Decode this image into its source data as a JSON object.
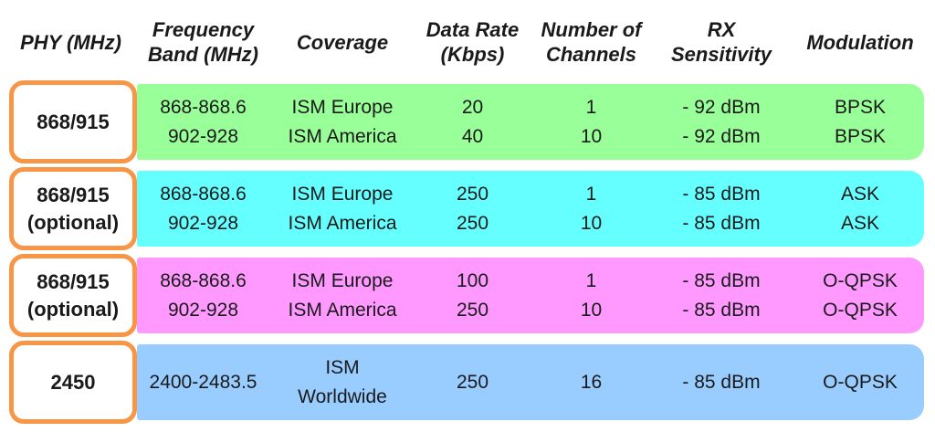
{
  "colors": {
    "accent_box_border": "#F79646",
    "band_green": "#99FF99",
    "band_cyan": "#66FFFF",
    "band_magenta": "#FF99FF",
    "band_blue": "#99CCFF"
  },
  "header": {
    "columns": [
      {
        "line1": "PHY (MHz)",
        "line2": ""
      },
      {
        "line1": "Frequency",
        "line2": "Band (MHz)"
      },
      {
        "line1": "Coverage",
        "line2": ""
      },
      {
        "line1": "Data Rate",
        "line2": "(Kbps)"
      },
      {
        "line1": "Number of",
        "line2": "Channels"
      },
      {
        "line1": "RX",
        "line2": "Sensitivity"
      },
      {
        "line1": "Modulation",
        "line2": ""
      }
    ]
  },
  "rows": [
    {
      "phy": {
        "a": "868/915",
        "b": ""
      },
      "color": "#99FF99",
      "cells": {
        "freq": {
          "a": "868-868.6",
          "b": "902-928"
        },
        "coverage": {
          "a": "ISM Europe",
          "b": "ISM America"
        },
        "rate": {
          "a": "20",
          "b": "40"
        },
        "channels": {
          "a": "1",
          "b": "10"
        },
        "rx": {
          "a": "- 92 dBm",
          "b": "- 92 dBm"
        },
        "mod": {
          "a": "BPSK",
          "b": "BPSK"
        }
      }
    },
    {
      "phy": {
        "a": "868/915",
        "b": "(optional)"
      },
      "color": "#66FFFF",
      "cells": {
        "freq": {
          "a": "868-868.6",
          "b": "902-928"
        },
        "coverage": {
          "a": "ISM Europe",
          "b": "ISM America"
        },
        "rate": {
          "a": "250",
          "b": "250"
        },
        "channels": {
          "a": "1",
          "b": "10"
        },
        "rx": {
          "a": "- 85 dBm",
          "b": "- 85 dBm"
        },
        "mod": {
          "a": "ASK",
          "b": "ASK"
        }
      }
    },
    {
      "phy": {
        "a": "868/915",
        "b": "(optional)"
      },
      "color": "#FF99FF",
      "cells": {
        "freq": {
          "a": "868-868.6",
          "b": "902-928"
        },
        "coverage": {
          "a": "ISM Europe",
          "b": "ISM America"
        },
        "rate": {
          "a": "100",
          "b": "250"
        },
        "channels": {
          "a": "1",
          "b": "10"
        },
        "rx": {
          "a": "- 85 dBm",
          "b": "- 85 dBm"
        },
        "mod": {
          "a": "O-QPSK",
          "b": "O-QPSK"
        }
      }
    },
    {
      "phy": {
        "a": "2450",
        "b": ""
      },
      "color": "#99CCFF",
      "cells": {
        "freq": {
          "a": "2400-2483.5",
          "b": ""
        },
        "coverage": {
          "a": "ISM",
          "b": "Worldwide"
        },
        "rate": {
          "a": "250",
          "b": ""
        },
        "channels": {
          "a": "16",
          "b": ""
        },
        "rx": {
          "a": "- 85 dBm",
          "b": ""
        },
        "mod": {
          "a": "O-QPSK",
          "b": ""
        }
      }
    }
  ]
}
